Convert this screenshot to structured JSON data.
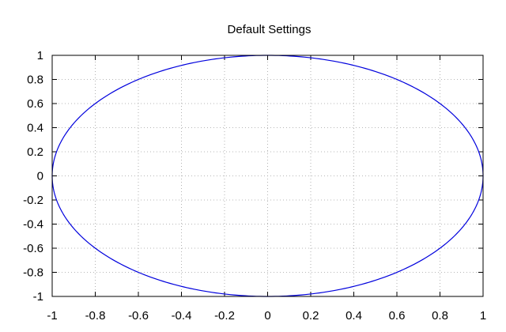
{
  "chart_data": {
    "type": "line",
    "title": "Default Settings",
    "xlabel": "",
    "ylabel": "",
    "xlim": [
      -1,
      1
    ],
    "ylim": [
      -1,
      1
    ],
    "x_ticks": [
      "-1",
      "-0.8",
      "-0.6",
      "-0.4",
      "-0.2",
      "0",
      "0.2",
      "0.4",
      "0.6",
      "0.8",
      "1"
    ],
    "y_ticks": [
      "1",
      "0.8",
      "0.6",
      "0.4",
      "0.2",
      "0",
      "-0.2",
      "-0.4",
      "-0.6",
      "-0.8",
      "-1"
    ],
    "grid": true,
    "legend": "none",
    "series": [
      {
        "shape": "ellipse",
        "center": [
          0,
          0
        ],
        "radius_x": 1,
        "radius_y": 1,
        "color": "#0000dd"
      }
    ],
    "colors": {
      "series": "#0000dd",
      "grid": "#a0a0a0",
      "axis": "#000000"
    }
  }
}
